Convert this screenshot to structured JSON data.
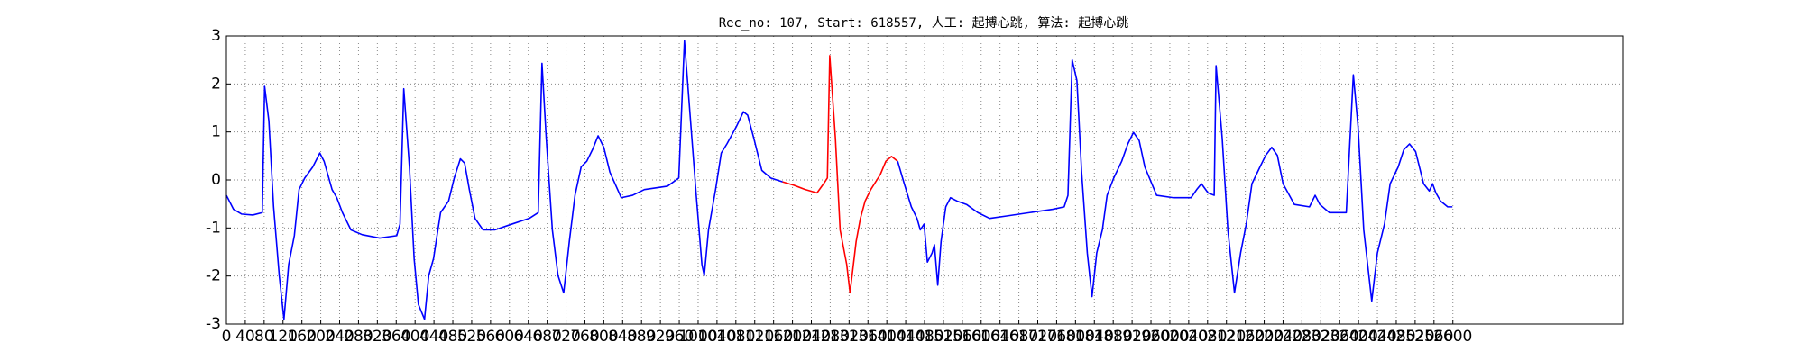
{
  "chart_data": {
    "type": "line",
    "title": "Rec_no: 107, Start: 618557, 人工: 起搏心跳, 算法: 起搏心跳",
    "xlim": [
      0,
      2960
    ],
    "ylim": [
      -3,
      3
    ],
    "xticks": [
      0,
      40,
      80,
      120,
      160,
      200,
      240,
      280,
      320,
      360,
      400,
      440,
      480,
      520,
      560,
      600,
      640,
      680,
      720,
      760,
      800,
      840,
      880,
      920,
      960,
      1000,
      1040,
      1080,
      1120,
      1160,
      1200,
      1240,
      1280,
      1320,
      1360,
      1400,
      1440,
      1480,
      1520,
      1560,
      1600,
      1640,
      1680,
      1720,
      1760,
      1800,
      1840,
      1880,
      1920,
      1960,
      2000,
      2040,
      2080,
      2120,
      2160,
      2200,
      2240,
      2280,
      2320,
      2360,
      2400,
      2440,
      2480,
      2520,
      2560,
      2600
    ],
    "yticks": [
      -3,
      -2,
      -1,
      0,
      1,
      2,
      3
    ],
    "grid": true,
    "series": [
      {
        "color": "#0000ff",
        "x": [
          0,
          15,
          32,
          56,
          76,
          81,
          90,
          100,
          112,
          122,
          132,
          144,
          154,
          166,
          183,
          198,
          207,
          224,
          234,
          246,
          264,
          288,
          325,
          361,
          368,
          376,
          388,
          398,
          407,
          420,
          429,
          439,
          454,
          471,
          483,
          496,
          505,
          515,
          527,
          544,
          569,
          605,
          642,
          661,
          669,
          678,
          691,
          703,
          715,
          727,
          739,
          752,
          764,
          776,
          788,
          800,
          813,
          837,
          861,
          886,
          935,
          959,
          971,
          983,
          996,
          1008,
          1013,
          1022,
          1037,
          1049,
          1061,
          1081,
          1096,
          1105,
          1118,
          1135,
          1154,
          1179,
          1300,
          1423,
          1437,
          1452,
          1464,
          1471,
          1479,
          1486,
          1496,
          1501,
          1508,
          1515,
          1525,
          1535,
          1549,
          1569,
          1593,
          1618,
          1654,
          1703,
          1752,
          1776,
          1784,
          1793,
          1803,
          1813,
          1825,
          1835,
          1845,
          1857,
          1867,
          1881,
          1898,
          1911,
          1923,
          1935,
          1947,
          1972,
          2008,
          2045,
          2057,
          2067,
          2081,
          2094,
          2098,
          2111,
          2123,
          2137,
          2150,
          2162,
          2174,
          2191,
          2203,
          2216,
          2228,
          2240,
          2264,
          2296,
          2308,
          2318,
          2338,
          2374,
          2389,
          2399,
          2411,
          2428,
          2440,
          2455,
          2467,
          2484,
          2496,
          2508,
          2521,
          2538,
          2550,
          2557,
          2564,
          2574,
          2589,
          2599
        ],
        "values": [
          -0.32,
          -0.61,
          -0.71,
          -0.73,
          -0.68,
          1.95,
          1.23,
          -0.56,
          -1.99,
          -2.9,
          -1.76,
          -1.16,
          -0.2,
          0.04,
          0.27,
          0.56,
          0.39,
          -0.2,
          -0.37,
          -0.68,
          -1.04,
          -1.14,
          -1.21,
          -1.16,
          -0.92,
          1.9,
          0.27,
          -1.64,
          -2.59,
          -2.9,
          -1.99,
          -1.64,
          -0.68,
          -0.44,
          0.04,
          0.44,
          0.35,
          -0.2,
          -0.8,
          -1.04,
          -1.04,
          -0.92,
          -0.8,
          -0.68,
          2.43,
          0.87,
          -1.04,
          -1.99,
          -2.35,
          -1.28,
          -0.32,
          0.27,
          0.39,
          0.63,
          0.92,
          0.68,
          0.16,
          -0.37,
          -0.32,
          -0.2,
          -0.13,
          0.04,
          2.9,
          1.35,
          -0.32,
          -1.76,
          -1.99,
          -1.04,
          -0.2,
          0.56,
          0.75,
          1.11,
          1.42,
          1.35,
          0.87,
          0.2,
          0.04,
          -0.04,
          null,
          0.39,
          -0.08,
          -0.56,
          -0.8,
          -1.04,
          -0.92,
          -1.71,
          -1.52,
          -1.35,
          -2.19,
          -1.28,
          -0.56,
          -0.37,
          -0.44,
          -0.51,
          -0.68,
          -0.8,
          -0.75,
          -0.68,
          -0.61,
          -0.56,
          -0.32,
          2.5,
          2.07,
          0.16,
          -1.52,
          -2.43,
          -1.52,
          -1.04,
          -0.32,
          0.04,
          0.39,
          0.75,
          0.99,
          0.82,
          0.27,
          -0.32,
          -0.37,
          -0.37,
          -0.2,
          -0.08,
          -0.27,
          -0.32,
          2.38,
          0.87,
          -1.04,
          -2.35,
          -1.52,
          -0.92,
          -0.08,
          0.27,
          0.51,
          0.68,
          0.51,
          -0.08,
          -0.51,
          -0.56,
          -0.32,
          -0.51,
          -0.68,
          -0.68,
          2.19,
          1.11,
          -1.04,
          -2.52,
          -1.52,
          -0.92,
          -0.08,
          0.27,
          0.63,
          0.75,
          0.59,
          -0.08,
          -0.23,
          -0.08,
          -0.27,
          -0.44,
          -0.56,
          -0.56
        ]
      },
      {
        "color": "#ff0000",
        "x": [
          1179,
          1203,
          1227,
          1252,
          1266,
          1274,
          1279,
          1291,
          1301,
          1315,
          1322,
          1335,
          1344,
          1354,
          1366,
          1386,
          1398,
          1410,
          1423
        ],
        "values": [
          -0.04,
          -0.11,
          -0.2,
          -0.27,
          -0.08,
          0.04,
          2.59,
          0.87,
          -1.04,
          -1.76,
          -2.35,
          -1.28,
          -0.8,
          -0.44,
          -0.2,
          0.11,
          0.39,
          0.49,
          0.39
        ]
      }
    ]
  }
}
